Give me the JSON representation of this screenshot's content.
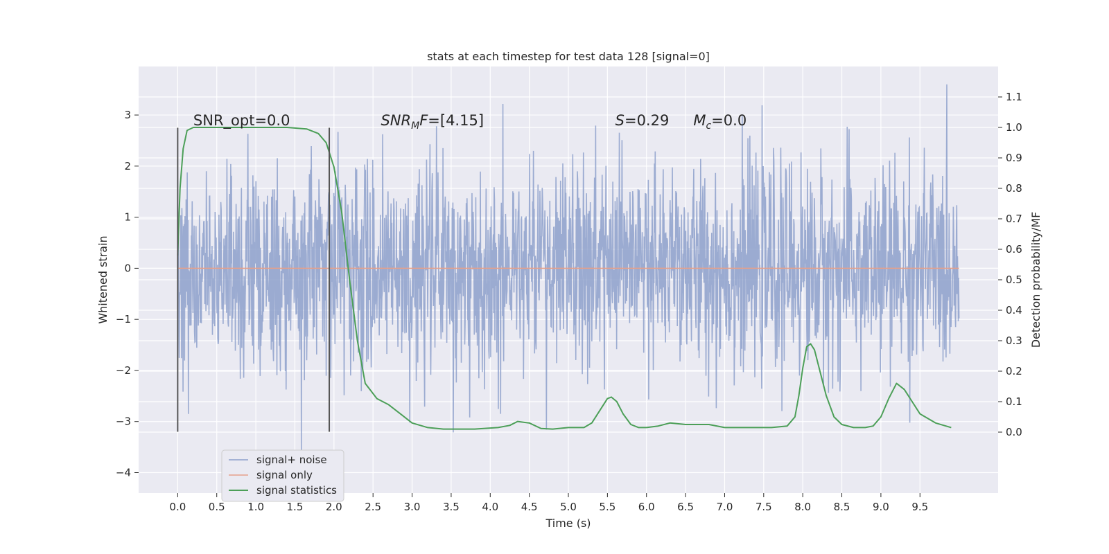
{
  "chart_data": {
    "type": "line",
    "title": "stats at each timestep for test data 128 [signal=0]",
    "xlabel": "Time (s)",
    "ylabel": "Whitened strain",
    "ylabel_right": "Detection probability/MF",
    "xlim": [
      -0.5,
      10.5
    ],
    "ylim": [
      -4.4,
      3.95
    ],
    "ylim_right": [
      -0.2,
      1.2
    ],
    "x_ticks": [
      0.0,
      0.5,
      1.0,
      1.5,
      2.0,
      2.5,
      3.0,
      3.5,
      4.0,
      4.5,
      5.0,
      5.5,
      6.0,
      6.5,
      7.0,
      7.5,
      8.0,
      8.5,
      9.0,
      9.5
    ],
    "x_tick_labels": [
      "0.0",
      "0.5",
      "1.0",
      "1.5",
      "2.0",
      "2.5",
      "3.0",
      "3.5",
      "4.0",
      "4.5",
      "5.0",
      "5.5",
      "6.0",
      "6.5",
      "7.0",
      "7.5",
      "8.0",
      "8.5",
      "9.0",
      "9.5"
    ],
    "y_ticks": [
      -4,
      -3,
      -2,
      -1,
      0,
      1,
      2,
      3
    ],
    "y_tick_labels": [
      "−4",
      "−3",
      "−2",
      "−1",
      "0",
      "1",
      "2",
      "3"
    ],
    "y_ticks_right": [
      0.0,
      0.1,
      0.2,
      0.3,
      0.4,
      0.5,
      0.6,
      0.7,
      0.8,
      0.9,
      1.0,
      1.1
    ],
    "y_tick_labels_right": [
      "0.0",
      "0.1",
      "0.2",
      "0.3",
      "0.4",
      "0.5",
      "0.6",
      "0.7",
      "0.8",
      "0.9",
      "1.0",
      "1.1"
    ],
    "grid": true,
    "legend_position": "lower-left",
    "annotations": [
      {
        "id": "snr-opt",
        "html": "SNR_opt=0.0",
        "x": 0.2
      },
      {
        "id": "snr-mf",
        "html": "<tspan font-style='italic'>SNR</tspan><tspan font-style='italic' font-size='14' dy='5'>M</tspan><tspan font-style='italic' dy='-5'>F</tspan>=[4.15]",
        "x": 2.6
      },
      {
        "id": "s",
        "html": "<tspan font-style='italic'>S</tspan>=0.29",
        "x": 5.6
      },
      {
        "id": "mc",
        "html": "<tspan font-style='italic'>M</tspan><tspan font-style='italic' font-size='14' dy='5'>c</tspan><tspan dy='-5'>=0.0</tspan>",
        "x": 6.6
      }
    ],
    "annotation_y": 2.8,
    "vertical_markers": [
      {
        "x": 0.0,
        "y0": -3.2,
        "y1": 2.75,
        "color": "#555555"
      },
      {
        "x": 1.94,
        "y0": -3.2,
        "y1": 2.75,
        "color": "#555555"
      }
    ],
    "series": [
      {
        "name": "signal+ noise",
        "color": "#8da0cb",
        "kind": "noise",
        "x_range": [
          0.0,
          10.0
        ],
        "samples": 2048,
        "sigma": 1.0,
        "y_min": -4.05,
        "y_max": 3.6
      },
      {
        "name": "signal only",
        "color": "#e6a08a",
        "x": [
          0.0,
          10.0
        ],
        "values": [
          0.0,
          0.0
        ]
      },
      {
        "name": "signal statistics",
        "color": "#4c9f58",
        "axis": "right",
        "x": [
          0.0,
          0.03,
          0.07,
          0.12,
          0.2,
          0.35,
          0.6,
          1.0,
          1.4,
          1.65,
          1.8,
          1.9,
          2.0,
          2.1,
          2.2,
          2.3,
          2.4,
          2.55,
          2.7,
          2.85,
          3.0,
          3.2,
          3.4,
          3.8,
          4.1,
          4.25,
          4.35,
          4.5,
          4.65,
          4.8,
          5.0,
          5.2,
          5.3,
          5.4,
          5.5,
          5.55,
          5.62,
          5.7,
          5.8,
          5.9,
          6.0,
          6.15,
          6.3,
          6.5,
          6.8,
          7.0,
          7.3,
          7.6,
          7.8,
          7.9,
          7.95,
          8.0,
          8.05,
          8.1,
          8.15,
          8.2,
          8.3,
          8.4,
          8.5,
          8.65,
          8.8,
          8.9,
          9.0,
          9.1,
          9.2,
          9.3,
          9.4,
          9.5,
          9.7,
          9.9
        ],
        "values": [
          0.58,
          0.8,
          0.93,
          0.99,
          1.0,
          1.0,
          1.0,
          1.0,
          1.0,
          0.995,
          0.98,
          0.95,
          0.87,
          0.72,
          0.5,
          0.3,
          0.16,
          0.11,
          0.09,
          0.06,
          0.03,
          0.015,
          0.01,
          0.01,
          0.015,
          0.022,
          0.035,
          0.03,
          0.012,
          0.01,
          0.015,
          0.015,
          0.03,
          0.07,
          0.11,
          0.115,
          0.1,
          0.06,
          0.025,
          0.015,
          0.015,
          0.02,
          0.03,
          0.025,
          0.025,
          0.015,
          0.015,
          0.015,
          0.02,
          0.05,
          0.12,
          0.21,
          0.28,
          0.29,
          0.27,
          0.22,
          0.12,
          0.05,
          0.025,
          0.015,
          0.015,
          0.02,
          0.05,
          0.11,
          0.16,
          0.14,
          0.1,
          0.06,
          0.03,
          0.015
        ]
      }
    ]
  }
}
